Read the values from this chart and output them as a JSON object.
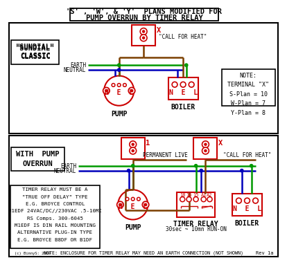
{
  "title_line1": "'S' , 'W', & 'Y'  PLANS MODIFIED FOR",
  "title_line2": "PUMP OVERRUN BY TIMER RELAY",
  "bg_color": "#ffffff",
  "red": "#cc0000",
  "green": "#009900",
  "blue": "#0000bb",
  "brown": "#7B3F00",
  "black": "#000000",
  "note_text": "NOTE:\nTERMINAL \"X\"\nS-Plan = 10\nW-Plan = 7\nY-Plan = 8",
  "timer_note_lines": [
    "TIMER RELAY MUST BE A",
    "\"TRUE OFF DELAY\" TYPE",
    "E.G. BROYCE CONTROL",
    "M1EDF 24VAC/DC//230VAC .5-10MI",
    "RS Comps. 300-6045",
    "M1EDF IS DIN RAIL MOUNTING",
    "ALTERNATIVE PLUG-IN TYPE",
    "E.G. BROYCE B8DF OR B1DF"
  ],
  "bottom_note": "NOTE: ENCLOSURE FOR TIMER RELAY MAY NEED AN EARTH CONNECTION (NOT SHOWN)",
  "timer_relay_sub": "30sec ~ 10mn RUN-ON",
  "footer": "Rev 1a"
}
